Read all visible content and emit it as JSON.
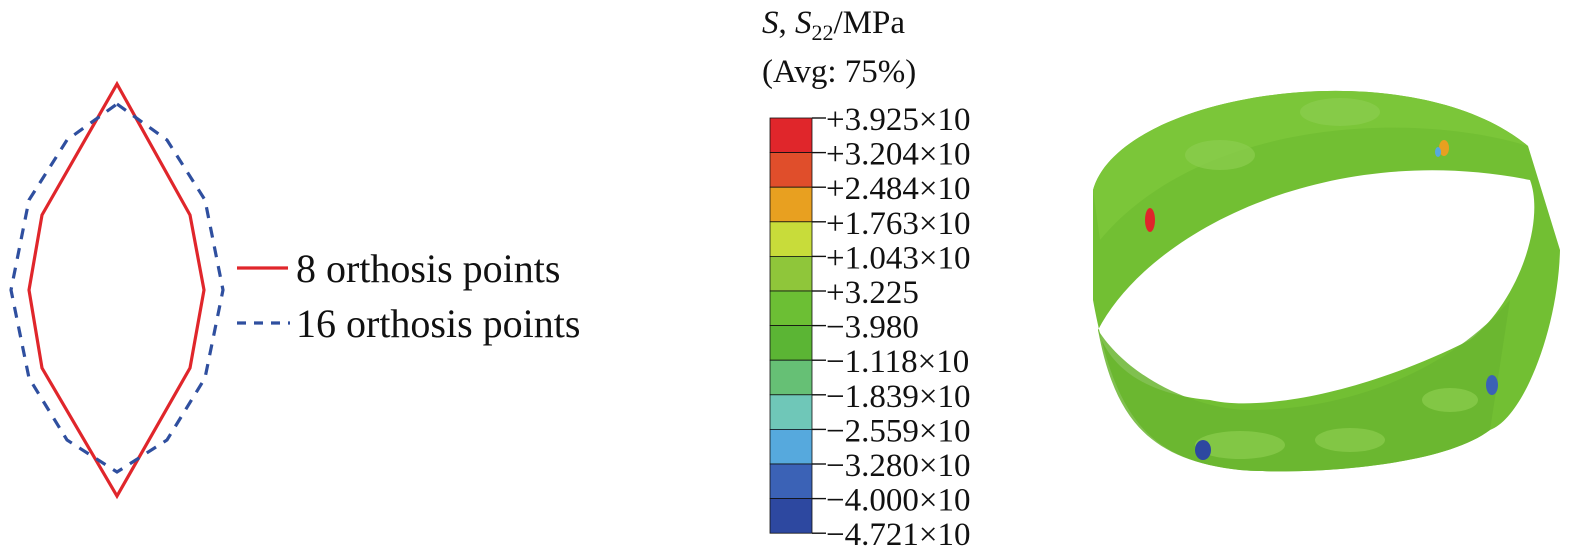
{
  "outline_panel": {
    "legend": [
      {
        "label": "8 orthosis points",
        "color": "#e0262b",
        "style": "solid"
      },
      {
        "label": "16 orthosis points",
        "color": "#2f4f9f",
        "style": "dashed"
      }
    ]
  },
  "contour_legend": {
    "title_variable": "S",
    "title_component_symbol": "S",
    "title_component_subscript": "22",
    "title_unit": "/MPa",
    "subtitle": "(Avg: 75%)",
    "levels": [
      {
        "label": "+3.925×10",
        "color": "#e0262b"
      },
      {
        "label": "+3.204×10",
        "color": "#e04e2b"
      },
      {
        "label": "+2.484×10",
        "color": "#e8a020"
      },
      {
        "label": "+1.763×10",
        "color": "#c8dc3a"
      },
      {
        "label": "+1.043×10",
        "color": "#8fc63a"
      },
      {
        "label": "+3.225",
        "color": "#6cbf34"
      },
      {
        "label": "−3.980",
        "color": "#5bb534"
      },
      {
        "label": "−1.118×10",
        "color": "#66c075"
      },
      {
        "label": "−1.839×10",
        "color": "#6fc7b8"
      },
      {
        "label": "−2.559×10",
        "color": "#56a9dd"
      },
      {
        "label": "−3.280×10",
        "color": "#3b62b6"
      },
      {
        "label": "−4.000×10",
        "color": "#2d48a0"
      },
      {
        "label": "−4.721×10",
        "color": null
      }
    ]
  },
  "ring_model": {
    "base_color": "#72bf33"
  }
}
